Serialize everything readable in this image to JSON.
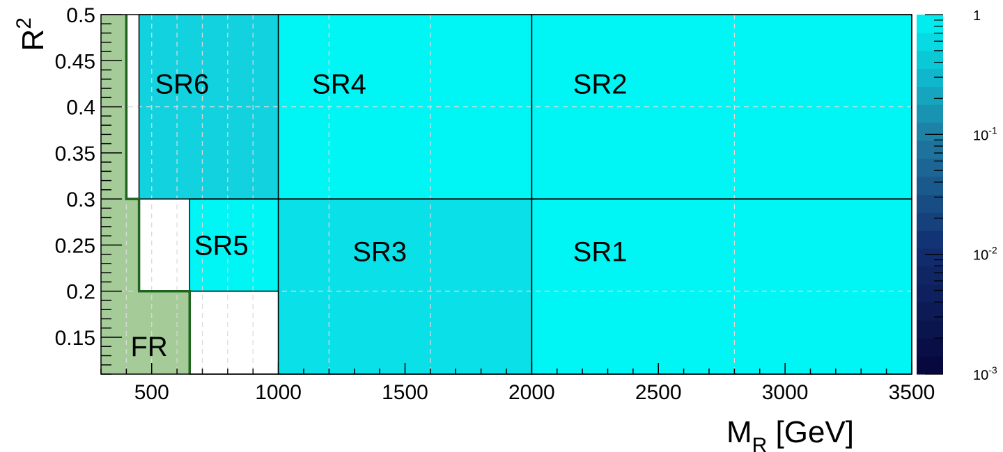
{
  "chart_data": {
    "type": "heatmap",
    "xlabel": {
      "main": "M",
      "sub": "R",
      "unit": " [GeV]"
    },
    "ylabel": {
      "main": "R",
      "sup": "2"
    },
    "xlim": [
      300,
      3500
    ],
    "ylim": [
      0.11,
      0.5
    ],
    "x_scale": "linear",
    "y_scale": "linear",
    "x_ticks": [
      {
        "value": 500,
        "label": "500"
      },
      {
        "value": 1000,
        "label": "1000"
      },
      {
        "value": 1500,
        "label": "1500"
      },
      {
        "value": 2000,
        "label": "2000"
      },
      {
        "value": 2500,
        "label": "2500"
      },
      {
        "value": 3000,
        "label": "3000"
      },
      {
        "value": 3500,
        "label": "3500"
      }
    ],
    "y_ticks": [
      {
        "value": 0.15,
        "label": "0.15"
      },
      {
        "value": 0.2,
        "label": "0.2"
      },
      {
        "value": 0.25,
        "label": "0.25"
      },
      {
        "value": 0.3,
        "label": "0.3"
      },
      {
        "value": 0.35,
        "label": "0.35"
      },
      {
        "value": 0.4,
        "label": "0.4"
      },
      {
        "value": 0.45,
        "label": "0.45"
      },
      {
        "value": 0.5,
        "label": "0.5"
      }
    ],
    "grid": true,
    "grid_x": [
      400,
      500,
      600,
      700,
      800,
      900,
      1200,
      1600,
      2800
    ],
    "grid_y": [
      0.2,
      0.4
    ],
    "z_scale": "log",
    "zlim": [
      0.001,
      1
    ],
    "colorbar_ticks": [
      {
        "value": 1,
        "label": "1"
      },
      {
        "value": 0.1,
        "label": "10",
        "sup": "-1"
      },
      {
        "value": 0.01,
        "label": "10",
        "sup": "-2"
      },
      {
        "value": 0.001,
        "label": "10",
        "sup": "-3"
      }
    ],
    "cells": [
      {
        "name": "SR1",
        "x": [
          2000,
          3500
        ],
        "y": [
          0.11,
          0.3
        ],
        "z": 1.0,
        "color": "#00f5f5"
      },
      {
        "name": "SR2",
        "x": [
          2000,
          3500
        ],
        "y": [
          0.3,
          0.5
        ],
        "z": 1.0,
        "color": "#00f5f5"
      },
      {
        "name": "SR3",
        "x": [
          1000,
          2000
        ],
        "y": [
          0.11,
          0.3
        ],
        "z": 0.7,
        "color": "#0ae0e8"
      },
      {
        "name": "SR4",
        "x": [
          1000,
          2000
        ],
        "y": [
          0.3,
          0.5
        ],
        "z": 1.0,
        "color": "#00f5f5"
      },
      {
        "name": "SR5",
        "x": [
          650,
          1000
        ],
        "y": [
          0.2,
          0.3
        ],
        "z": 1.0,
        "color": "#00f5f5"
      },
      {
        "name": "SR6",
        "x": [
          450,
          1000
        ],
        "y": [
          0.3,
          0.5
        ],
        "z": 0.55,
        "color": "#13d2e0"
      }
    ],
    "fr_region": {
      "name": "FR",
      "boundary": [
        [
          400,
          0.5
        ],
        [
          400,
          0.3
        ],
        [
          450,
          0.3
        ],
        [
          450,
          0.2
        ],
        [
          650,
          0.2
        ],
        [
          650,
          0.11
        ]
      ],
      "fill_color": "#a5cc98",
      "line_color": "#1e641e"
    },
    "region_labels": [
      {
        "text": "SR6",
        "x": 620,
        "y": 0.425
      },
      {
        "text": "SR4",
        "x": 1240,
        "y": 0.425
      },
      {
        "text": "SR2",
        "x": 2270,
        "y": 0.425
      },
      {
        "text": "SR5",
        "x": 775,
        "y": 0.25
      },
      {
        "text": "SR3",
        "x": 1400,
        "y": 0.243
      },
      {
        "text": "SR1",
        "x": 2270,
        "y": 0.243
      },
      {
        "text": "FR",
        "x": 490,
        "y": 0.14
      }
    ]
  }
}
